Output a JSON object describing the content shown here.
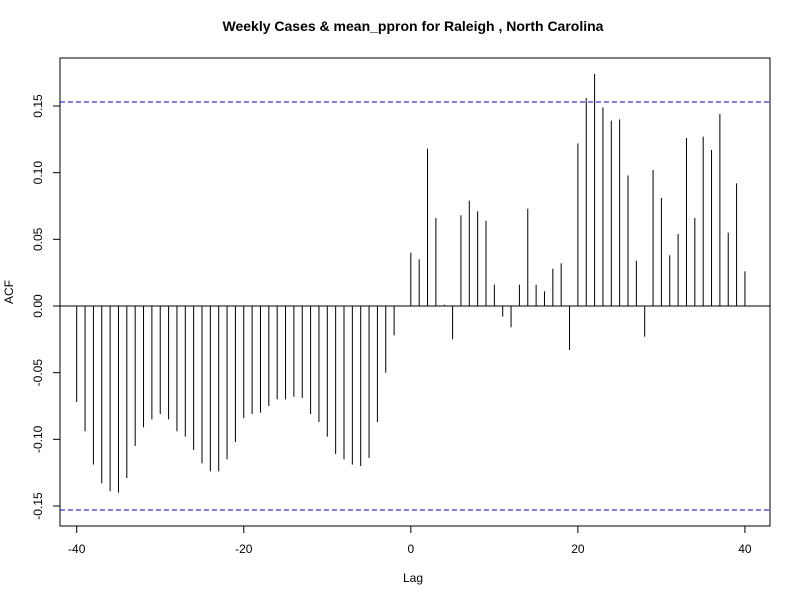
{
  "chart_data": {
    "type": "bar",
    "title": "Weekly Cases & mean_ppron for Raleigh , North Carolina",
    "xlabel": "Lag",
    "ylabel": "ACF",
    "xlim": [
      -42,
      43
    ],
    "ylim": [
      -0.165,
      0.186
    ],
    "x_ticks": [
      -40,
      -20,
      0,
      20,
      40
    ],
    "x_tick_labels": [
      "-40",
      "-20",
      "0",
      "20",
      "40"
    ],
    "y_ticks": [
      -0.15,
      -0.1,
      -0.05,
      0.0,
      0.05,
      0.1,
      0.15
    ],
    "y_tick_labels": [
      "-0.15",
      "-0.10",
      "-0.05",
      "0.00",
      "0.05",
      "0.10",
      "0.15"
    ],
    "confidence_bound": 0.153,
    "colors": {
      "bars": "#000000",
      "confidence": "#0000cc",
      "zero_line": "#000000"
    },
    "lags": [
      -40,
      -39,
      -38,
      -37,
      -36,
      -35,
      -34,
      -33,
      -32,
      -31,
      -30,
      -29,
      -28,
      -27,
      -26,
      -25,
      -24,
      -23,
      -22,
      -21,
      -20,
      -19,
      -18,
      -17,
      -16,
      -15,
      -14,
      -13,
      -12,
      -11,
      -10,
      -9,
      -8,
      -7,
      -6,
      -5,
      -4,
      -3,
      -2,
      -1,
      0,
      1,
      2,
      3,
      4,
      5,
      6,
      7,
      8,
      9,
      10,
      11,
      12,
      13,
      14,
      15,
      16,
      17,
      18,
      19,
      20,
      21,
      22,
      23,
      24,
      25,
      26,
      27,
      28,
      29,
      30,
      31,
      32,
      33,
      34,
      35,
      36,
      37,
      38,
      39,
      40
    ],
    "values": [
      -0.072,
      -0.094,
      -0.119,
      -0.133,
      -0.139,
      -0.14,
      -0.129,
      -0.105,
      -0.091,
      -0.085,
      -0.081,
      -0.085,
      -0.094,
      -0.098,
      -0.108,
      -0.118,
      -0.124,
      -0.124,
      -0.115,
      -0.102,
      -0.084,
      -0.081,
      -0.08,
      -0.075,
      -0.07,
      -0.07,
      -0.068,
      -0.069,
      -0.081,
      -0.087,
      -0.098,
      -0.111,
      -0.115,
      -0.119,
      -0.12,
      -0.114,
      -0.087,
      -0.05,
      -0.022,
      0.0,
      0.04,
      0.035,
      0.118,
      0.066,
      0.001,
      -0.025,
      0.068,
      0.079,
      0.071,
      0.064,
      0.016,
      -0.008,
      -0.016,
      0.016,
      0.073,
      0.016,
      0.011,
      0.028,
      0.032,
      -0.033,
      0.122,
      0.156,
      0.174,
      0.149,
      0.139,
      0.14,
      0.098,
      0.034,
      -0.023,
      0.102,
      0.081,
      0.038,
      0.054,
      0.126,
      0.066,
      0.127,
      0.117,
      0.144,
      0.055,
      0.092,
      0.026
    ]
  }
}
